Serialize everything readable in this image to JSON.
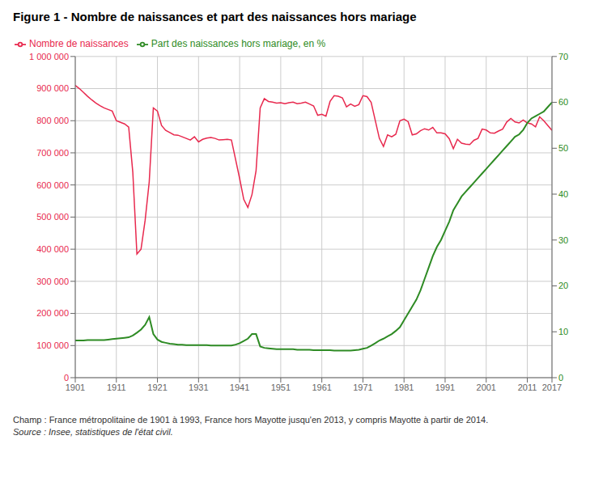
{
  "chart_data": {
    "type": "line",
    "title": "Figure 1 - Nombre de naissances et part des naissances hors mariage",
    "annotations": [
      "Champ : France métropolitaine de 1901 à 1993, France hors Mayotte jusqu'en 2013, y compris Mayotte à partir de 2014.",
      "Source : Insee, statistiques de l'état civil."
    ],
    "x": [
      1901,
      1902,
      1903,
      1904,
      1905,
      1906,
      1907,
      1908,
      1909,
      1910,
      1911,
      1912,
      1913,
      1914,
      1915,
      1916,
      1917,
      1918,
      1919,
      1920,
      1921,
      1922,
      1923,
      1924,
      1925,
      1926,
      1927,
      1928,
      1929,
      1930,
      1931,
      1932,
      1933,
      1934,
      1935,
      1936,
      1937,
      1938,
      1939,
      1940,
      1941,
      1942,
      1943,
      1944,
      1945,
      1946,
      1947,
      1948,
      1949,
      1950,
      1951,
      1952,
      1953,
      1954,
      1955,
      1956,
      1957,
      1958,
      1959,
      1960,
      1961,
      1962,
      1963,
      1964,
      1965,
      1966,
      1967,
      1968,
      1969,
      1970,
      1971,
      1972,
      1973,
      1974,
      1975,
      1976,
      1977,
      1978,
      1979,
      1980,
      1981,
      1982,
      1983,
      1984,
      1985,
      1986,
      1987,
      1988,
      1989,
      1990,
      1991,
      1992,
      1993,
      1994,
      1995,
      1996,
      1997,
      1998,
      1999,
      2000,
      2001,
      2002,
      2003,
      2004,
      2005,
      2006,
      2007,
      2008,
      2009,
      2010,
      2011,
      2012,
      2013,
      2014,
      2015,
      2016,
      2017
    ],
    "series": [
      {
        "name": "Nombre de naissances",
        "color": "#e8294e",
        "values": [
          910000,
          900000,
          888000,
          876000,
          865000,
          855000,
          847000,
          840000,
          835000,
          830000,
          800000,
          795000,
          790000,
          780000,
          640000,
          385000,
          400000,
          490000,
          610000,
          840000,
          830000,
          785000,
          770000,
          763000,
          756000,
          755000,
          750000,
          745000,
          740000,
          750000,
          734000,
          742000,
          746000,
          748000,
          745000,
          740000,
          741000,
          742000,
          740000,
          680000,
          620000,
          555000,
          530000,
          570000,
          645000,
          840000,
          869000,
          860000,
          858000,
          855000,
          856000,
          853000,
          856000,
          858000,
          853000,
          855000,
          858000,
          852000,
          846000,
          817000,
          820000,
          814000,
          860000,
          878000,
          876000,
          871000,
          843000,
          852000,
          845000,
          850000,
          878000,
          875000,
          857000,
          801000,
          745000,
          720000,
          756000,
          750000,
          758000,
          800000,
          805000,
          797000,
          756000,
          759000,
          769000,
          775000,
          771000,
          779000,
          762000,
          762000,
          759000,
          744000,
          713000,
          742000,
          730000,
          727000,
          726000,
          739000,
          745000,
          774000,
          771000,
          762000,
          761000,
          768000,
          774000,
          796000,
          807000,
          796000,
          793000,
          802000,
          793000,
          790000,
          781000,
          812000,
          800000,
          785000,
          770000
        ]
      },
      {
        "name": "Part des naissances hors mariage, en %",
        "color": "#2e8b24",
        "axis": "y2",
        "values": [
          8.1,
          8.1,
          8.1,
          8.2,
          8.2,
          8.2,
          8.2,
          8.2,
          8.3,
          8.4,
          8.5,
          8.6,
          8.7,
          8.8,
          9.2,
          9.8,
          10.5,
          11.5,
          13.2,
          9.5,
          8.3,
          7.8,
          7.6,
          7.4,
          7.3,
          7.2,
          7.2,
          7.1,
          7.1,
          7.1,
          7.1,
          7.1,
          7.1,
          7.0,
          7.0,
          7.0,
          7.0,
          7.0,
          7.0,
          7.2,
          7.5,
          8.0,
          8.5,
          9.5,
          9.5,
          6.8,
          6.5,
          6.4,
          6.3,
          6.2,
          6.2,
          6.2,
          6.2,
          6.2,
          6.1,
          6.1,
          6.1,
          6.1,
          6.0,
          6.0,
          6.0,
          6.0,
          6.0,
          5.9,
          5.9,
          5.9,
          5.9,
          5.9,
          6.0,
          6.1,
          6.3,
          6.5,
          7.0,
          7.5,
          8.1,
          8.5,
          9.0,
          9.5,
          10.2,
          11.0,
          12.5,
          14.0,
          15.5,
          17.0,
          19.0,
          21.5,
          24.0,
          26.5,
          28.5,
          30.0,
          32.0,
          34.0,
          36.5,
          38.0,
          39.5,
          40.5,
          41.5,
          42.5,
          43.5,
          44.5,
          45.5,
          46.5,
          47.5,
          48.5,
          49.5,
          50.5,
          51.5,
          52.5,
          53.0,
          54.0,
          55.5,
          56.5,
          57.0,
          57.5,
          58.0,
          59.0,
          60.0
        ]
      }
    ],
    "xlim": [
      1901,
      2017
    ],
    "xticks": [
      1901,
      1911,
      1921,
      1931,
      1941,
      1951,
      1961,
      1971,
      1981,
      1991,
      2001,
      2011,
      2017
    ],
    "ylim": [
      0,
      1000000
    ],
    "yticks": [
      0,
      {
        "value": 100000,
        "label": "100 000"
      },
      {
        "value": 200000,
        "label": "200 000"
      },
      {
        "value": 300000,
        "label": "300 000"
      },
      {
        "value": 400000,
        "label": "400 000"
      },
      {
        "value": 500000,
        "label": "500 000"
      },
      {
        "value": 600000,
        "label": "600 000"
      },
      {
        "value": 700000,
        "label": "700 000"
      },
      {
        "value": 800000,
        "label": "800 000"
      },
      {
        "value": 900000,
        "label": "900 000"
      },
      {
        "value": 1000000,
        "label": "1 000 000"
      }
    ],
    "y2lim": [
      0,
      70
    ],
    "y2ticks": [
      0,
      10,
      20,
      30,
      40,
      50,
      60,
      70
    ],
    "grid": true,
    "legend": "top"
  }
}
